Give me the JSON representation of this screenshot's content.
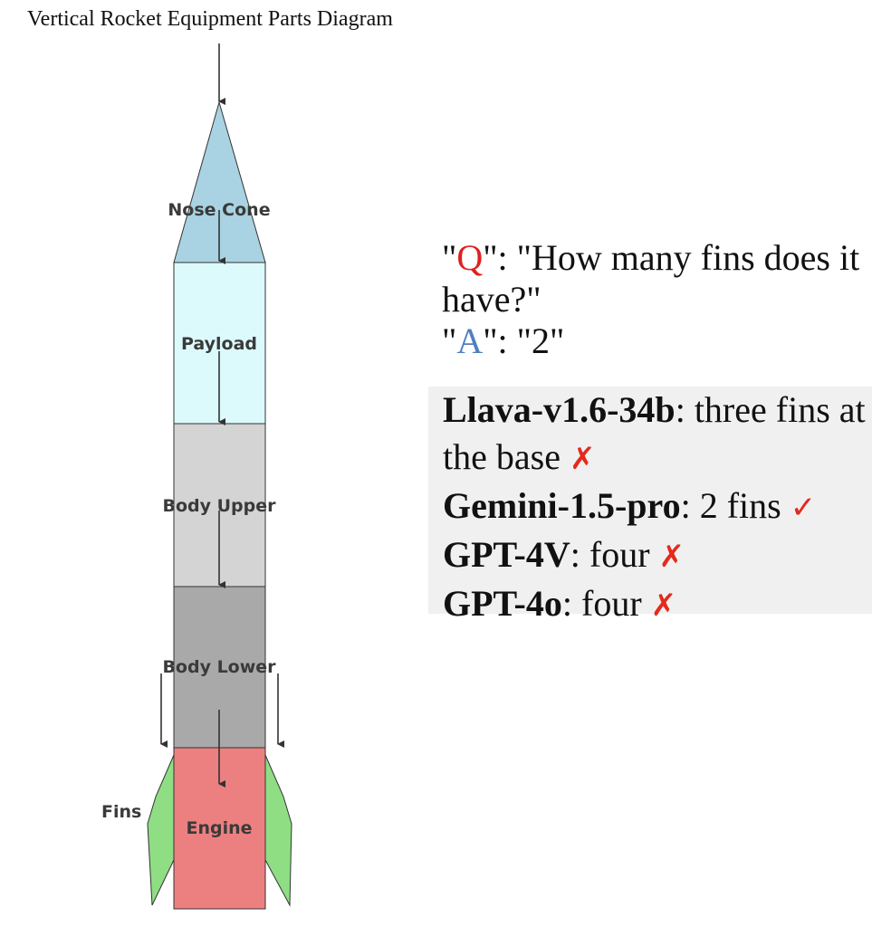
{
  "title": "Vertical Rocket Equipment Parts Diagram",
  "rocket": {
    "parts": [
      {
        "name": "Nose Cone",
        "color": "#a9d3e3"
      },
      {
        "name": "Payload",
        "color": "#dcfafc"
      },
      {
        "name": "Body Upper",
        "color": "#d4d4d4"
      },
      {
        "name": "Body Lower",
        "color": "#a9a9a9"
      },
      {
        "name": "Engine",
        "color": "#ec8080"
      }
    ],
    "fins_label": "Fins",
    "fin_color": "#8fde84",
    "arrow_color": "#333333"
  },
  "qa": {
    "q_open": "\"",
    "q_letter": "Q",
    "q_rest": "\": \"How many fins does it have?\"",
    "a_open": "\"",
    "a_letter": "A",
    "a_rest": "\": \"2\""
  },
  "answers": [
    {
      "model": "Llava-v1.6-34b",
      "sep": ": ",
      "text": "three fins at the base ",
      "mark": "✗",
      "mark_type": "wrong"
    },
    {
      "model": "Gemini-1.5-pro",
      "sep": ": ",
      "text": "2 fins ",
      "mark": "✓",
      "mark_type": "correct"
    },
    {
      "model": "GPT-4V",
      "sep": ":  ",
      "text": "four ",
      "mark": "✗",
      "mark_type": "wrong"
    },
    {
      "model": "GPT-4o",
      "sep": ": ",
      "text": "four  ",
      "mark": "✗",
      "mark_type": "wrong"
    }
  ],
  "colors": {
    "q_letter": "#e0201e",
    "a_letter": "#4f7fc0",
    "mark": "#e32a1c",
    "answer_bg": "#f0f0f0"
  }
}
